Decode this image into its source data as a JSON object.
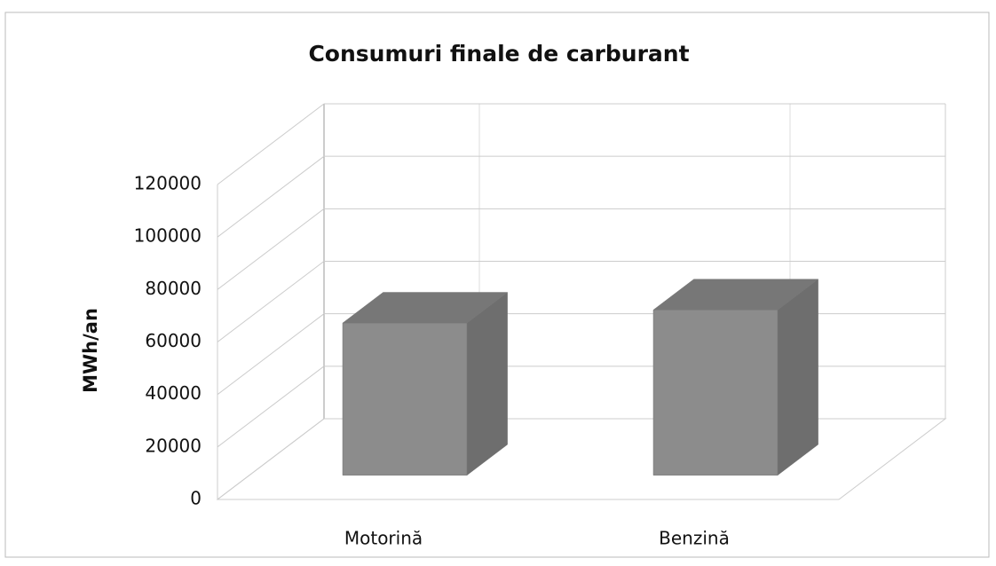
{
  "chart_data": {
    "type": "bar3d",
    "title": "Consumuri finale de carburant",
    "y_label": "MWh/an",
    "categories": [
      "Motorină",
      "Benzină"
    ],
    "values": [
      58000,
      63000
    ],
    "color": "#8c8c8c",
    "ylim": [
      0,
      120000
    ],
    "yticks": [
      0,
      20000,
      40000,
      60000,
      80000,
      100000,
      120000
    ],
    "grid": true
  }
}
